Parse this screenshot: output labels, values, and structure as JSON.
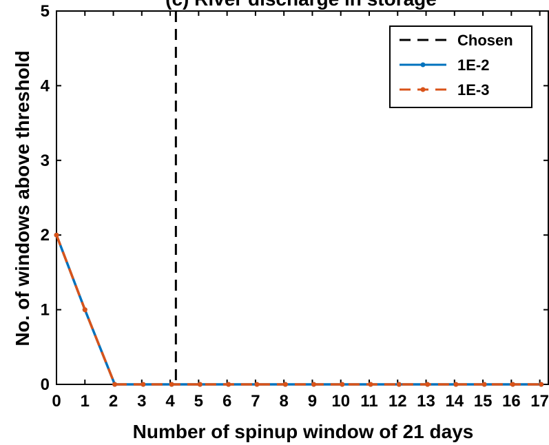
{
  "chart_data": {
    "type": "line",
    "title": "(c) River discharge in storage",
    "xlabel": "Number of spinup window of 21 days",
    "ylabel": "No. of windows above threshold",
    "xlim": [
      0,
      17.3
    ],
    "ylim": [
      0,
      5
    ],
    "xticks": [
      0,
      1,
      2,
      3,
      4,
      5,
      6,
      7,
      8,
      9,
      10,
      11,
      12,
      13,
      14,
      15,
      16,
      17
    ],
    "yticks": [
      0,
      1,
      2,
      3,
      4,
      5
    ],
    "grid": false,
    "legend_position": "top-right",
    "chosen_x": 4.2,
    "x": [
      0,
      1,
      2.05,
      3.05,
      4.05,
      5.05,
      6.05,
      7.05,
      8.05,
      9.05,
      10.05,
      11.05,
      12.05,
      13.05,
      14.05,
      15.05,
      16.05,
      17.05
    ],
    "series": [
      {
        "name": "Chosen",
        "color": "#000000",
        "style": "dashed-vertical"
      },
      {
        "name": "1E-2",
        "color": "#0072bd",
        "values": [
          2,
          1,
          0,
          0,
          0,
          0,
          0,
          0,
          0,
          0,
          0,
          0,
          0,
          0,
          0,
          0,
          0,
          0
        ]
      },
      {
        "name": "1E-3",
        "color": "#d95319",
        "values": [
          2,
          1,
          0,
          0,
          0,
          0,
          0,
          0,
          0,
          0,
          0,
          0,
          0,
          0,
          0,
          0,
          0,
          0
        ]
      }
    ]
  }
}
